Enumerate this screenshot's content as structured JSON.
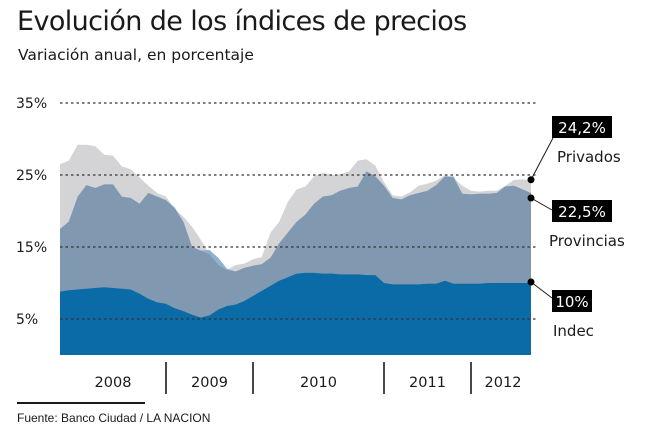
{
  "header": {
    "title": "Evolución de los índices de precios",
    "subtitle": "Variación anual, en porcentaje"
  },
  "footer": {
    "source": "Fuente: Banco Ciudad / LA NACION"
  },
  "colors": {
    "privados": "#d4d4d6",
    "privados_above": "#8fb2d2",
    "provincias": "#8098b0",
    "indec": "#0a6ba6",
    "callout_bg": "#000000",
    "grid": "#333333"
  },
  "chart_data": {
    "type": "area",
    "title": "Evolución de los índices de precios",
    "subtitle": "Variación anual, en porcentaje",
    "xlabel": "",
    "ylabel": "",
    "ylim": [
      0,
      35
    ],
    "yticks": [
      5,
      15,
      25,
      35
    ],
    "ytick_labels": [
      "5%",
      "15%",
      "25%",
      "35%"
    ],
    "grid": "horizontal dotted",
    "x_segments": [
      {
        "label": "2008",
        "start": 0,
        "end": 12
      },
      {
        "label": "2009",
        "start": 12,
        "end": 22
      },
      {
        "label": "2010",
        "start": 22,
        "end": 37
      },
      {
        "label": "2011",
        "start": 37,
        "end": 47
      },
      {
        "label": "2012",
        "start": 47,
        "end": 54
      }
    ],
    "x": [
      0,
      1,
      2,
      3,
      4,
      5,
      6,
      7,
      8,
      9,
      10,
      11,
      12,
      13,
      14,
      15,
      16,
      17,
      18,
      19,
      20,
      21,
      22,
      23,
      24,
      25,
      26,
      27,
      28,
      29,
      30,
      31,
      32,
      33,
      34,
      35,
      36,
      37,
      38,
      39,
      40,
      41,
      42,
      43,
      44,
      45,
      46,
      47,
      48,
      49,
      50,
      51,
      52,
      53,
      54
    ],
    "series": [
      {
        "name": "Privados",
        "values": [
          26.5,
          27,
          29.2,
          29.2,
          29,
          27.8,
          27.7,
          26.2,
          25.8,
          24.7,
          23.5,
          22.5,
          22,
          20.3,
          19.2,
          17.8,
          16,
          14,
          12.5,
          11.8,
          12.5,
          12.7,
          13.3,
          13.6,
          17,
          18.5,
          21.3,
          23,
          23.4,
          24.8,
          25.3,
          25,
          25.1,
          25.5,
          27,
          27.2,
          26.3,
          24,
          22.2,
          22,
          22.6,
          23.5,
          23.8,
          24.2,
          25,
          24.6,
          23.5,
          22.8,
          22.7,
          22.8,
          22.8,
          23.5,
          24.3,
          24.4,
          24.2
        ],
        "end_label": "24,2%"
      },
      {
        "name": "Provincias",
        "values": [
          17.5,
          18.5,
          22,
          23.6,
          23.2,
          23.7,
          23.7,
          22,
          21.8,
          21,
          22.5,
          22,
          21.5,
          20.5,
          18.5,
          15,
          14.5,
          14.6,
          13.5,
          12,
          11.6,
          12.1,
          12.4,
          12.6,
          13.5,
          15.5,
          17,
          18.5,
          19.5,
          21,
          22,
          22.2,
          22.8,
          23.2,
          23.4,
          25.5,
          24.8,
          23.5,
          21.8,
          21.6,
          22.2,
          22.5,
          22.8,
          23.6,
          24.8,
          24.8,
          22.4,
          22.3,
          22.4,
          22.4,
          22.5,
          23.4,
          23.5,
          23,
          22.5
        ],
        "end_label": "22,5%"
      },
      {
        "name": "Indec",
        "values": [
          8.8,
          9,
          9.1,
          9.2,
          9.3,
          9.4,
          9.3,
          9.2,
          9.1,
          8.5,
          7.8,
          7.3,
          7.1,
          6.5,
          6.1,
          5.6,
          5.2,
          5.5,
          6.3,
          6.8,
          7,
          7.5,
          8.2,
          8.9,
          9.6,
          10.3,
          10.8,
          11.3,
          11.4,
          11.4,
          11.3,
          11.3,
          11.2,
          11.2,
          11.2,
          11.1,
          11.1,
          10,
          9.8,
          9.8,
          9.8,
          9.8,
          9.9,
          9.9,
          10.3,
          9.9,
          9.9,
          9.9,
          9.9,
          10,
          10,
          10,
          10,
          10,
          10
        ],
        "end_label": "10%"
      }
    ],
    "callouts": [
      {
        "series": "Privados",
        "value_label": "24,2%",
        "name_label": "Privados"
      },
      {
        "series": "Provincias",
        "value_label": "22,5%",
        "name_label": "Provincias"
      },
      {
        "series": "Indec",
        "value_label": "10%",
        "name_label": "Indec"
      }
    ]
  }
}
